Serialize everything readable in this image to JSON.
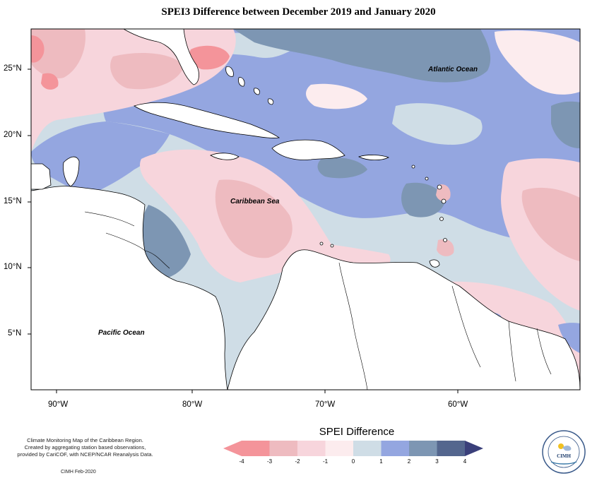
{
  "title": "SPEI3 Difference between December 2019 and January 2020",
  "lon_ticks": [
    "90°W",
    "80°W",
    "70°W",
    "60°W"
  ],
  "lat_ticks": [
    "25°N",
    "20°N",
    "15°N",
    "10°N",
    "5°N"
  ],
  "labels": {
    "atlantic": "Atlantic Ocean",
    "caribbean": "Caribbean Sea",
    "pacific": "Pacific Ocean"
  },
  "legend": {
    "title": "SPEI Difference",
    "ticks": [
      "-4",
      "-3",
      "-2",
      "-1",
      "0",
      "1",
      "2",
      "3",
      "4"
    ],
    "colors": [
      "#f4949a",
      "#eebbc0",
      "#f7d5dc",
      "#fcecee",
      "#cfdde6",
      "#94a6e0",
      "#7d96b3",
      "#54668e"
    ]
  },
  "credit_lines": [
    "Climate Monitoring Map of the Caribbean Region.",
    "Created by aggregating station based observations,",
    "provided by CariCOF, with NCEP/NCAR Reanalysis Data."
  ],
  "credit_date": "CIMH Feb-2020",
  "logo_text": "CIMH",
  "colors": {
    "ocean_base": "#cfdde6",
    "land": "#ffffff",
    "border": "#000000"
  }
}
